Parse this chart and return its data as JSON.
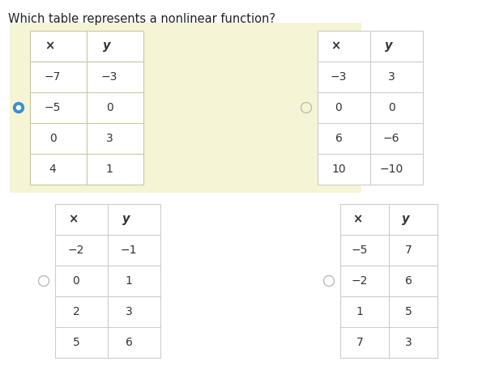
{
  "title": "Which table represents a nonlinear function?",
  "title_fontsize": 10.5,
  "tables": [
    {
      "id": "A",
      "headers": [
        "×",
        "y"
      ],
      "rows": [
        [
          "−7",
          "−3"
        ],
        [
          "−5",
          "0"
        ],
        [
          "0",
          "3"
        ],
        [
          "4",
          "1"
        ]
      ],
      "selected": true,
      "radio_row": 1,
      "bg_color": "#f5f5d5",
      "border_color": "#c8c8a0"
    },
    {
      "id": "B",
      "headers": [
        "×",
        "y"
      ],
      "rows": [
        [
          "−3",
          "3"
        ],
        [
          "0",
          "0"
        ],
        [
          "6",
          "−6"
        ],
        [
          "10",
          "−10"
        ]
      ],
      "selected": false,
      "radio_row": 1,
      "bg_color": "#ffffff",
      "border_color": "#cccccc"
    },
    {
      "id": "C",
      "headers": [
        "×",
        "y"
      ],
      "rows": [
        [
          "−2",
          "−1"
        ],
        [
          "0",
          "1"
        ],
        [
          "2",
          "3"
        ],
        [
          "5",
          "6"
        ]
      ],
      "selected": false,
      "radio_row": 1,
      "bg_color": "#ffffff",
      "border_color": "#cccccc"
    },
    {
      "id": "D",
      "headers": [
        "×",
        "y"
      ],
      "rows": [
        [
          "−5",
          "7"
        ],
        [
          "−2",
          "6"
        ],
        [
          "1",
          "5"
        ],
        [
          "7",
          "3"
        ]
      ],
      "selected": false,
      "radio_row": 1,
      "bg_color": "#ffffff",
      "border_color": "#cccccc"
    }
  ],
  "radio_color_selected": "#3b8fd4",
  "radio_color_unselected": "#bbbbbb",
  "header_color": "#333333",
  "cell_color": "#333333",
  "cell_fontsize": 10,
  "header_fontsize": 10.5
}
